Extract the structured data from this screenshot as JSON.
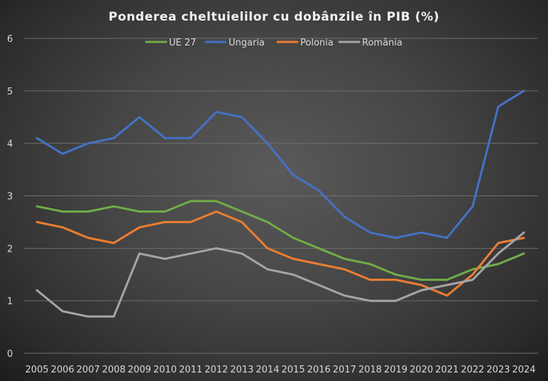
{
  "chart_data": {
    "type": "line",
    "title": "Ponderea cheltuielilor cu dobânzile în PIB (%)",
    "xlabel": "",
    "ylabel": "",
    "x": [
      "2005",
      "2006",
      "2007",
      "2008",
      "2009",
      "2010",
      "2011",
      "2012",
      "2013",
      "2014",
      "2015",
      "2016",
      "2017",
      "2018",
      "2019",
      "2020",
      "2021",
      "2022",
      "2023",
      "2024"
    ],
    "ylim": [
      0,
      6
    ],
    "yticks": [
      "0",
      "1",
      "2",
      "3",
      "4",
      "5",
      "6"
    ],
    "grid": true,
    "legend_position": "top",
    "series": [
      {
        "name": "UE 27",
        "color": "#70ad47",
        "values": [
          2.8,
          2.7,
          2.7,
          2.8,
          2.7,
          2.7,
          2.9,
          2.9,
          2.7,
          2.5,
          2.2,
          2.0,
          1.8,
          1.7,
          1.5,
          1.4,
          1.4,
          1.6,
          1.7,
          1.9
        ]
      },
      {
        "name": "Ungaria",
        "color": "#4472c4",
        "values": [
          4.1,
          3.8,
          4.0,
          4.1,
          4.5,
          4.1,
          4.1,
          4.6,
          4.5,
          4.0,
          3.4,
          3.1,
          2.6,
          2.3,
          2.2,
          2.3,
          2.2,
          2.8,
          4.7,
          5.0
        ]
      },
      {
        "name": "Polonia",
        "color": "#ed7d31",
        "values": [
          2.5,
          2.4,
          2.2,
          2.1,
          2.4,
          2.5,
          2.5,
          2.7,
          2.5,
          2.0,
          1.8,
          1.7,
          1.6,
          1.4,
          1.4,
          1.3,
          1.1,
          1.5,
          2.1,
          2.2
        ]
      },
      {
        "name": "România",
        "color": "#a5a5a5",
        "values": [
          1.2,
          0.8,
          0.7,
          0.7,
          1.9,
          1.8,
          1.9,
          2.0,
          1.9,
          1.6,
          1.5,
          1.3,
          1.1,
          1.0,
          1.0,
          1.2,
          1.3,
          1.4,
          1.9,
          2.3
        ]
      }
    ]
  }
}
